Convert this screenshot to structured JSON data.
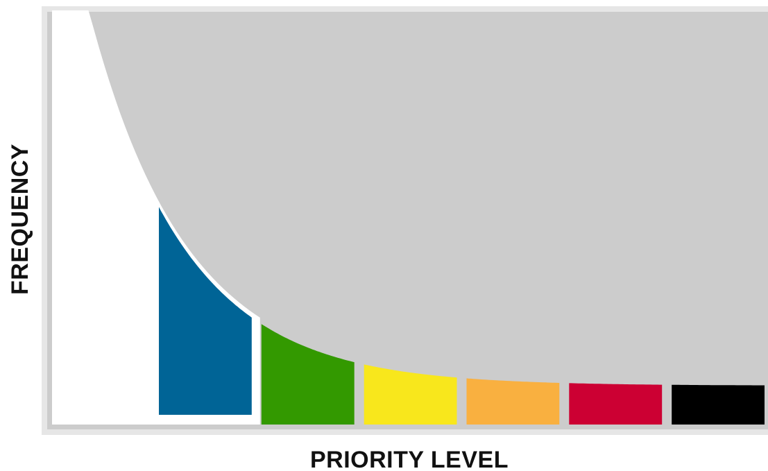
{
  "chart_data": {
    "type": "area",
    "title": "",
    "xlabel": "PRIORITY LEVEL",
    "ylabel": "FREQUENCY",
    "axes_ticks": false,
    "grid": false,
    "legend": "none",
    "background_color": "#cccccc",
    "curve": "decreasing exponential",
    "bands": [
      {
        "color": "#ffffff",
        "highlighted": false
      },
      {
        "color": "#006496",
        "highlighted": true
      },
      {
        "color": "#339900",
        "highlighted": false
      },
      {
        "color": "#f8e71c",
        "highlighted": false
      },
      {
        "color": "#f9b040",
        "highlighted": false
      },
      {
        "color": "#cc0033",
        "highlighted": false
      },
      {
        "color": "#000000",
        "highlighted": false
      }
    ]
  }
}
